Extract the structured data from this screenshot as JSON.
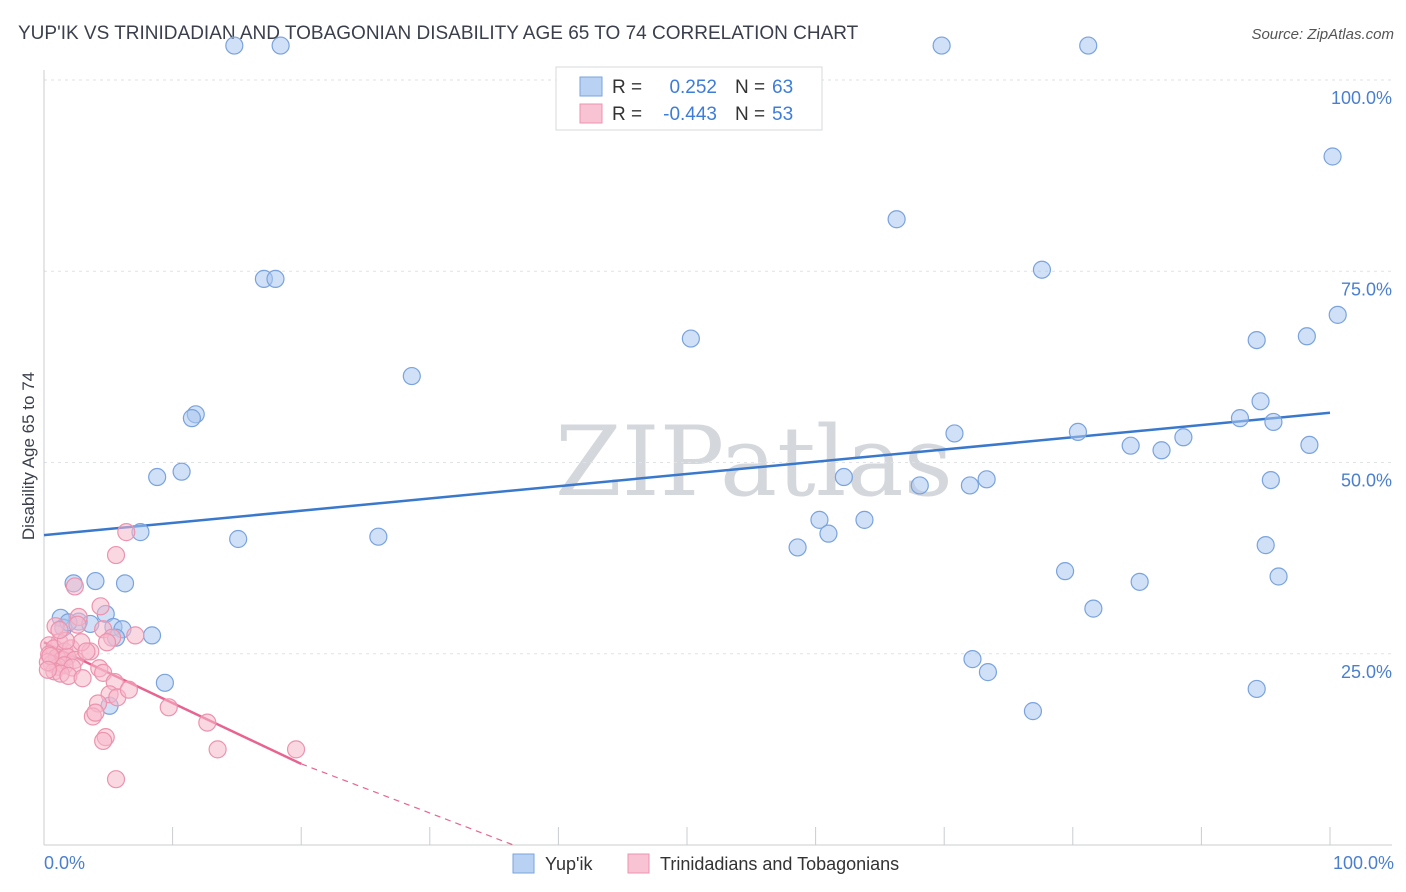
{
  "chart_data": {
    "type": "scatter",
    "title": "YUP'IK VS TRINIDADIAN AND TOBAGONIAN DISABILITY AGE 65 TO 74 CORRELATION CHART",
    "source": "Source: ZipAtlas.com",
    "watermark": "ZIPatlas",
    "ylabel": "Disability Age 65 to 74",
    "xlabel": "",
    "xlim": [
      0,
      100
    ],
    "ylim": [
      0,
      100
    ],
    "x_tick_labels": {
      "min": "0.0%",
      "max": "100.0%"
    },
    "y_ticks": [
      {
        "value": 25,
        "label": "25.0%"
      },
      {
        "value": 50,
        "label": "50.0%"
      },
      {
        "value": 75,
        "label": "75.0%"
      },
      {
        "value": 100,
        "label": "100.0%"
      }
    ],
    "legend_box": {
      "rows": [
        {
          "r_label": "R =",
          "r_value": "0.252",
          "n_label": "N =",
          "n_value": "63"
        },
        {
          "r_label": "R =",
          "r_value": "-0.443",
          "n_label": "N =",
          "n_value": "53"
        }
      ]
    },
    "series": [
      {
        "name": "Yup'ik",
        "color": "#a9c7ef",
        "stroke": "#7aa3dd",
        "line_color": "#3a78cc",
        "trend": {
          "x0": 0,
          "y0": 40.5,
          "x1": 100,
          "y1": 56.5,
          "dash_after_x": null
        },
        "points": [
          [
            14.8,
            104.5
          ],
          [
            18.4,
            104.5
          ],
          [
            69.8,
            104.5
          ],
          [
            81.2,
            104.5
          ],
          [
            100.2,
            90
          ],
          [
            66.3,
            81.8
          ],
          [
            17.1,
            74
          ],
          [
            18.0,
            74
          ],
          [
            77.6,
            75.2
          ],
          [
            100.6,
            69.3
          ],
          [
            50.3,
            66.2
          ],
          [
            94.3,
            66
          ],
          [
            98.2,
            66.5
          ],
          [
            28.6,
            61.3
          ],
          [
            11.8,
            56.3
          ],
          [
            11.5,
            55.8
          ],
          [
            94.6,
            58
          ],
          [
            93.0,
            55.8
          ],
          [
            95.6,
            55.3
          ],
          [
            70.8,
            53.8
          ],
          [
            80.4,
            54
          ],
          [
            88.6,
            53.3
          ],
          [
            84.5,
            52.2
          ],
          [
            86.9,
            51.6
          ],
          [
            98.4,
            52.3
          ],
          [
            8.8,
            48.1
          ],
          [
            10.7,
            48.8
          ],
          [
            62.2,
            48.1
          ],
          [
            68.1,
            47
          ],
          [
            72.0,
            47
          ],
          [
            73.3,
            47.8
          ],
          [
            95.4,
            47.7
          ],
          [
            60.3,
            42.5
          ],
          [
            63.8,
            42.5
          ],
          [
            61.0,
            40.7
          ],
          [
            58.6,
            38.9
          ],
          [
            7.5,
            40.9
          ],
          [
            15.1,
            40
          ],
          [
            26.0,
            40.3
          ],
          [
            95.0,
            39.2
          ],
          [
            79.4,
            35.8
          ],
          [
            85.2,
            34.4
          ],
          [
            96.0,
            35.1
          ],
          [
            2.3,
            34.2
          ],
          [
            4.0,
            34.5
          ],
          [
            6.3,
            34.2
          ],
          [
            1.3,
            29.7
          ],
          [
            2.7,
            29.2
          ],
          [
            4.8,
            30.2
          ],
          [
            1.5,
            28.4
          ],
          [
            1.9,
            29.1
          ],
          [
            3.6,
            28.9
          ],
          [
            5.4,
            28.5
          ],
          [
            6.1,
            28.2
          ],
          [
            5.6,
            27.1
          ],
          [
            8.4,
            27.4
          ],
          [
            81.6,
            30.9
          ],
          [
            72.2,
            24.3
          ],
          [
            73.4,
            22.6
          ],
          [
            76.9,
            17.5
          ],
          [
            94.3,
            20.4
          ],
          [
            9.4,
            21.2
          ],
          [
            5.1,
            18.2
          ]
        ]
      },
      {
        "name": "Trinidadians and Tobagonians",
        "color": "#f6b8cb",
        "stroke": "#ec93ae",
        "line_color": "#e8648f",
        "trend": {
          "x0": 0,
          "y0": 26.5,
          "x1": 36.5,
          "y1": -2.5,
          "dash_after_x": 20.0
        },
        "points": [
          [
            6.4,
            40.9
          ],
          [
            5.6,
            37.9
          ],
          [
            2.4,
            33.8
          ],
          [
            4.4,
            31.2
          ],
          [
            2.7,
            29.8
          ],
          [
            0.9,
            28.6
          ],
          [
            2.6,
            28.8
          ],
          [
            4.6,
            28.2
          ],
          [
            7.1,
            27.4
          ],
          [
            1.2,
            26.5
          ],
          [
            5.3,
            27.1
          ],
          [
            0.4,
            26.1
          ],
          [
            0.8,
            25.7
          ],
          [
            1.6,
            25.3
          ],
          [
            2.1,
            25.7
          ],
          [
            3.6,
            25.3
          ],
          [
            0.4,
            24.9
          ],
          [
            1.0,
            24.5
          ],
          [
            1.4,
            24.2
          ],
          [
            1.8,
            24.6
          ],
          [
            2.4,
            24.2
          ],
          [
            0.6,
            23.7
          ],
          [
            1.1,
            23.3
          ],
          [
            1.6,
            23.5
          ],
          [
            2.2,
            23.2
          ],
          [
            0.8,
            22.7
          ],
          [
            1.3,
            22.4
          ],
          [
            1.9,
            22.1
          ],
          [
            4.3,
            23.1
          ],
          [
            4.6,
            22.5
          ],
          [
            3.0,
            21.8
          ],
          [
            5.5,
            21.3
          ],
          [
            5.1,
            19.7
          ],
          [
            5.7,
            19.3
          ],
          [
            6.6,
            20.3
          ],
          [
            4.2,
            18.5
          ],
          [
            3.8,
            16.8
          ],
          [
            4.0,
            17.3
          ],
          [
            9.7,
            18.0
          ],
          [
            12.7,
            16.0
          ],
          [
            4.8,
            14.1
          ],
          [
            4.6,
            13.6
          ],
          [
            13.5,
            12.5
          ],
          [
            19.6,
            12.5
          ],
          [
            5.6,
            8.6
          ],
          [
            0.3,
            23.9
          ],
          [
            0.5,
            24.7
          ],
          [
            2.9,
            26.5
          ],
          [
            3.3,
            25.3
          ],
          [
            1.7,
            26.7
          ],
          [
            0.3,
            22.9
          ],
          [
            1.2,
            28.1
          ],
          [
            4.9,
            26.5
          ]
        ]
      }
    ]
  }
}
